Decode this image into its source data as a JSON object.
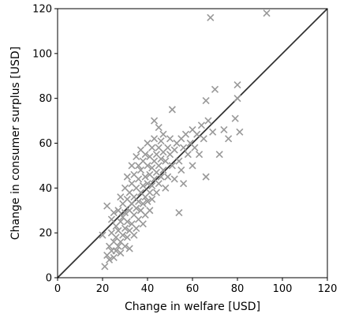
{
  "chart_data": {
    "type": "scatter",
    "title": "",
    "xlabel": "Change in welfare [USD]",
    "ylabel": "Change in consumer surplus [USD]",
    "xlim": [
      0,
      120
    ],
    "ylim": [
      0,
      120
    ],
    "xticks": [
      "0",
      "20",
      "40",
      "60",
      "80",
      "100",
      "120"
    ],
    "yticks": [
      "0",
      "20",
      "40",
      "60",
      "80",
      "100",
      "120"
    ],
    "grid": false,
    "marker": "x",
    "marker_color": "#999999",
    "reference_line": {
      "label": "",
      "x": [
        0,
        120
      ],
      "y": [
        0,
        120
      ],
      "color": "#333333"
    },
    "points": [
      {
        "x": 20,
        "y": 19
      },
      {
        "x": 21,
        "y": 5
      },
      {
        "x": 22,
        "y": 10
      },
      {
        "x": 22,
        "y": 32
      },
      {
        "x": 23,
        "y": 8
      },
      {
        "x": 23,
        "y": 14
      },
      {
        "x": 24,
        "y": 12
      },
      {
        "x": 24,
        "y": 20
      },
      {
        "x": 24,
        "y": 26
      },
      {
        "x": 25,
        "y": 16
      },
      {
        "x": 25,
        "y": 9
      },
      {
        "x": 25,
        "y": 29
      },
      {
        "x": 26,
        "y": 18
      },
      {
        "x": 26,
        "y": 12
      },
      {
        "x": 26,
        "y": 23
      },
      {
        "x": 27,
        "y": 14
      },
      {
        "x": 27,
        "y": 21
      },
      {
        "x": 27,
        "y": 30
      },
      {
        "x": 28,
        "y": 16
      },
      {
        "x": 28,
        "y": 25
      },
      {
        "x": 28,
        "y": 36
      },
      {
        "x": 28,
        "y": 11
      },
      {
        "x": 29,
        "y": 19
      },
      {
        "x": 29,
        "y": 27
      },
      {
        "x": 29,
        "y": 33
      },
      {
        "x": 30,
        "y": 22
      },
      {
        "x": 30,
        "y": 14
      },
      {
        "x": 30,
        "y": 40
      },
      {
        "x": 30,
        "y": 29
      },
      {
        "x": 31,
        "y": 18
      },
      {
        "x": 31,
        "y": 25
      },
      {
        "x": 31,
        "y": 35
      },
      {
        "x": 31,
        "y": 45
      },
      {
        "x": 32,
        "y": 21
      },
      {
        "x": 32,
        "y": 30
      },
      {
        "x": 32,
        "y": 38
      },
      {
        "x": 32,
        "y": 13
      },
      {
        "x": 33,
        "y": 24
      },
      {
        "x": 33,
        "y": 33
      },
      {
        "x": 33,
        "y": 42
      },
      {
        "x": 33,
        "y": 50
      },
      {
        "x": 34,
        "y": 28
      },
      {
        "x": 34,
        "y": 19
      },
      {
        "x": 34,
        "y": 36
      },
      {
        "x": 34,
        "y": 46
      },
      {
        "x": 35,
        "y": 31
      },
      {
        "x": 35,
        "y": 40
      },
      {
        "x": 35,
        "y": 22
      },
      {
        "x": 35,
        "y": 54
      },
      {
        "x": 36,
        "y": 34
      },
      {
        "x": 36,
        "y": 44
      },
      {
        "x": 36,
        "y": 26
      },
      {
        "x": 36,
        "y": 50
      },
      {
        "x": 37,
        "y": 38
      },
      {
        "x": 37,
        "y": 30
      },
      {
        "x": 37,
        "y": 48
      },
      {
        "x": 37,
        "y": 57
      },
      {
        "x": 38,
        "y": 41
      },
      {
        "x": 38,
        "y": 33
      },
      {
        "x": 38,
        "y": 52
      },
      {
        "x": 38,
        "y": 24
      },
      {
        "x": 39,
        "y": 45
      },
      {
        "x": 39,
        "y": 36
      },
      {
        "x": 39,
        "y": 55
      },
      {
        "x": 39,
        "y": 28
      },
      {
        "x": 40,
        "y": 42
      },
      {
        "x": 40,
        "y": 50
      },
      {
        "x": 40,
        "y": 34
      },
      {
        "x": 40,
        "y": 60
      },
      {
        "x": 41,
        "y": 46
      },
      {
        "x": 41,
        "y": 38
      },
      {
        "x": 41,
        "y": 54
      },
      {
        "x": 41,
        "y": 30
      },
      {
        "x": 42,
        "y": 49
      },
      {
        "x": 42,
        "y": 41
      },
      {
        "x": 42,
        "y": 58
      },
      {
        "x": 42,
        "y": 35
      },
      {
        "x": 43,
        "y": 52
      },
      {
        "x": 43,
        "y": 44
      },
      {
        "x": 43,
        "y": 62
      },
      {
        "x": 43,
        "y": 70
      },
      {
        "x": 44,
        "y": 47
      },
      {
        "x": 44,
        "y": 55
      },
      {
        "x": 44,
        "y": 38
      },
      {
        "x": 45,
        "y": 50
      },
      {
        "x": 45,
        "y": 58
      },
      {
        "x": 45,
        "y": 42
      },
      {
        "x": 45,
        "y": 67
      },
      {
        "x": 46,
        "y": 53
      },
      {
        "x": 46,
        "y": 45
      },
      {
        "x": 46,
        "y": 61
      },
      {
        "x": 47,
        "y": 56
      },
      {
        "x": 47,
        "y": 48
      },
      {
        "x": 47,
        "y": 64
      },
      {
        "x": 48,
        "y": 52
      },
      {
        "x": 48,
        "y": 40
      },
      {
        "x": 49,
        "y": 58
      },
      {
        "x": 49,
        "y": 45
      },
      {
        "x": 50,
        "y": 55
      },
      {
        "x": 50,
        "y": 62
      },
      {
        "x": 51,
        "y": 50
      },
      {
        "x": 51,
        "y": 75
      },
      {
        "x": 52,
        "y": 57
      },
      {
        "x": 52,
        "y": 44
      },
      {
        "x": 53,
        "y": 60
      },
      {
        "x": 54,
        "y": 52
      },
      {
        "x": 54,
        "y": 29
      },
      {
        "x": 55,
        "y": 62
      },
      {
        "x": 55,
        "y": 48
      },
      {
        "x": 56,
        "y": 58
      },
      {
        "x": 56,
        "y": 42
      },
      {
        "x": 57,
        "y": 64
      },
      {
        "x": 58,
        "y": 55
      },
      {
        "x": 59,
        "y": 60
      },
      {
        "x": 60,
        "y": 66
      },
      {
        "x": 60,
        "y": 50
      },
      {
        "x": 61,
        "y": 58
      },
      {
        "x": 62,
        "y": 64
      },
      {
        "x": 63,
        "y": 55
      },
      {
        "x": 64,
        "y": 68
      },
      {
        "x": 65,
        "y": 62
      },
      {
        "x": 66,
        "y": 45
      },
      {
        "x": 66,
        "y": 79
      },
      {
        "x": 67,
        "y": 70
      },
      {
        "x": 68,
        "y": 116
      },
      {
        "x": 69,
        "y": 65
      },
      {
        "x": 70,
        "y": 84
      },
      {
        "x": 72,
        "y": 55
      },
      {
        "x": 74,
        "y": 66
      },
      {
        "x": 76,
        "y": 62
      },
      {
        "x": 79,
        "y": 71
      },
      {
        "x": 80,
        "y": 80
      },
      {
        "x": 80,
        "y": 86
      },
      {
        "x": 81,
        "y": 65
      },
      {
        "x": 93,
        "y": 118
      }
    ]
  }
}
